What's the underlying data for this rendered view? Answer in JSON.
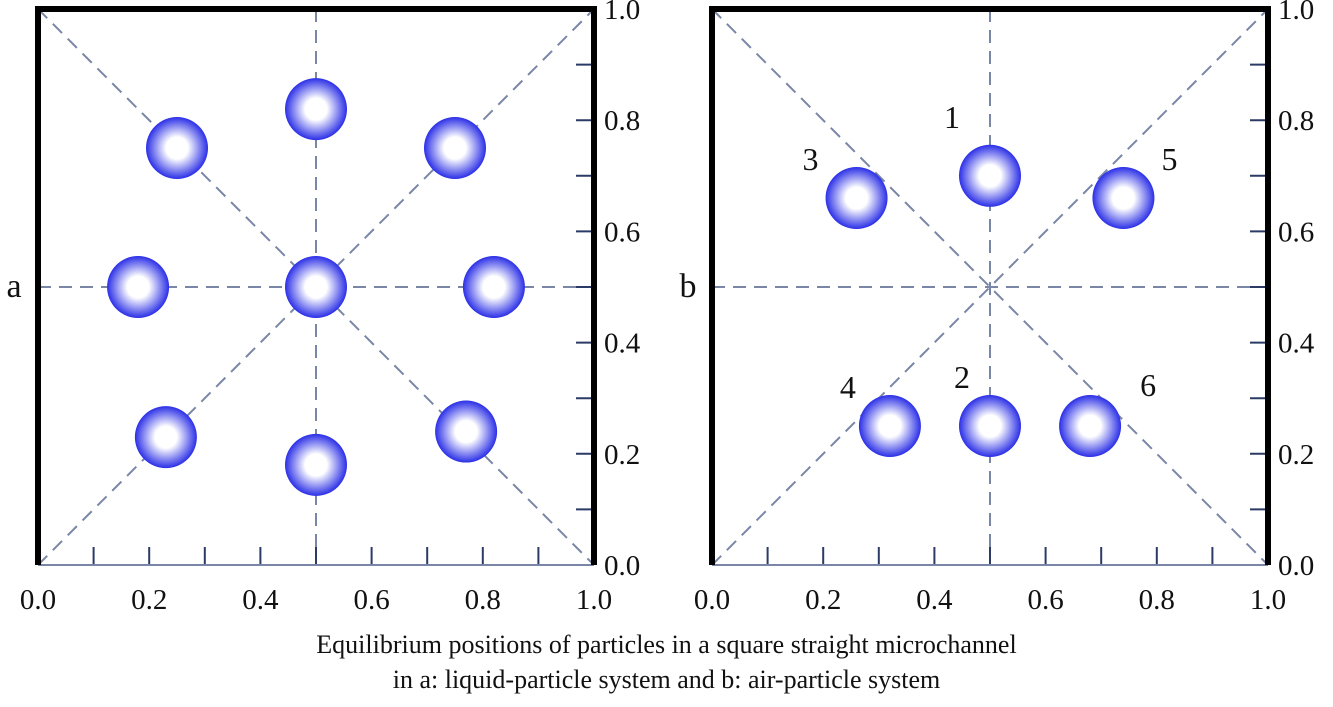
{
  "figure": {
    "caption_line1": "Equilibrium positions of particles in a square straight microchannel",
    "caption_line2": "in a: liquid-particle system and b: air-particle system"
  },
  "colors": {
    "frame": "#000000",
    "guide_line": "#7a86a6",
    "particle_edge": "#2b2fe6",
    "particle_center": "#ffffff"
  },
  "chart_data": [
    {
      "type": "scatter",
      "panel_label": "a",
      "xlim": [
        0,
        1
      ],
      "ylim": [
        0,
        1
      ],
      "x_ticks": [
        "0.0",
        "0.2",
        "0.4",
        "0.6",
        "0.8",
        "1.0"
      ],
      "y_ticks": [
        "0.0",
        "0.2",
        "0.4",
        "0.6",
        "0.8",
        "1.0"
      ],
      "guides": [
        "vertical-center",
        "horizontal-center",
        "diagonal",
        "anti-diagonal"
      ],
      "particles": [
        {
          "label": "",
          "x": 0.5,
          "y": 0.82
        },
        {
          "label": "",
          "x": 0.25,
          "y": 0.75
        },
        {
          "label": "",
          "x": 0.75,
          "y": 0.75
        },
        {
          "label": "",
          "x": 0.18,
          "y": 0.5
        },
        {
          "label": "",
          "x": 0.5,
          "y": 0.5
        },
        {
          "label": "",
          "x": 0.82,
          "y": 0.5
        },
        {
          "label": "",
          "x": 0.23,
          "y": 0.23
        },
        {
          "label": "",
          "x": 0.77,
          "y": 0.24
        },
        {
          "label": "",
          "x": 0.5,
          "y": 0.18
        }
      ]
    },
    {
      "type": "scatter",
      "panel_label": "b",
      "xlim": [
        0,
        1
      ],
      "ylim": [
        0,
        1
      ],
      "x_ticks": [
        "0.0",
        "0.2",
        "0.4",
        "0.6",
        "0.8",
        "1.0"
      ],
      "y_ticks": [
        "0.0",
        "0.2",
        "0.4",
        "0.6",
        "0.8",
        "1.0"
      ],
      "guides": [
        "vertical-center",
        "horizontal-center",
        "diagonal",
        "anti-diagonal"
      ],
      "particles": [
        {
          "label": "1",
          "x": 0.5,
          "y": 0.7
        },
        {
          "label": "3",
          "x": 0.26,
          "y": 0.66
        },
        {
          "label": "5",
          "x": 0.74,
          "y": 0.66
        },
        {
          "label": "4",
          "x": 0.32,
          "y": 0.25
        },
        {
          "label": "2",
          "x": 0.5,
          "y": 0.25
        },
        {
          "label": "6",
          "x": 0.68,
          "y": 0.25
        }
      ]
    }
  ]
}
